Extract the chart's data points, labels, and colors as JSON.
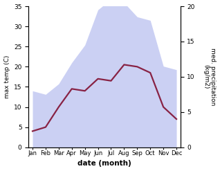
{
  "months": [
    "Jan",
    "Feb",
    "Mar",
    "Apr",
    "May",
    "Jun",
    "Jul",
    "Aug",
    "Sep",
    "Oct",
    "Nov",
    "Dec"
  ],
  "month_positions": [
    0,
    1,
    2,
    3,
    4,
    5,
    6,
    7,
    8,
    9,
    10,
    11
  ],
  "temperature": [
    4.0,
    5.0,
    10.0,
    14.5,
    14.0,
    17.0,
    16.5,
    20.5,
    20.0,
    18.5,
    10.0,
    7.0
  ],
  "precipitation": [
    8.0,
    7.5,
    9.0,
    12.0,
    14.5,
    19.5,
    21.0,
    20.5,
    18.5,
    18.0,
    11.5,
    11.0
  ],
  "temp_color": "#882244",
  "precip_color": "#b0b8ee",
  "title": "",
  "xlabel": "date (month)",
  "ylabel_left": "max temp (C)",
  "ylabel_right": "med. precipitation\n(kg/m2)",
  "ylim_left": [
    0,
    35
  ],
  "ylim_right": [
    0,
    20
  ],
  "yticks_left": [
    0,
    5,
    10,
    15,
    20,
    25,
    30,
    35
  ],
  "yticks_right": [
    0,
    5,
    10,
    15,
    20
  ],
  "bg_color": "#ffffff",
  "temp_linewidth": 1.6,
  "precip_alpha": 0.65
}
